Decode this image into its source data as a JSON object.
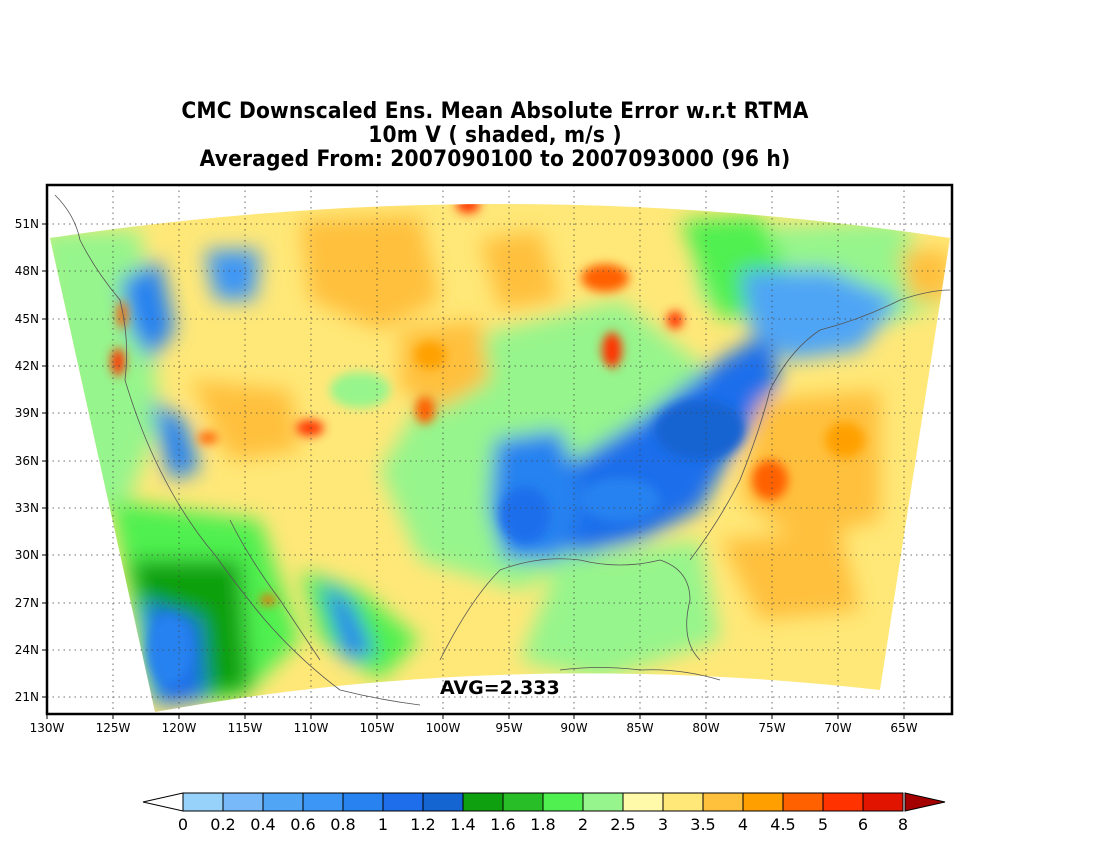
{
  "title": {
    "line1": "CMC Downscaled Ens. Mean Absolute Error w.r.t RTMA",
    "line2": "10m V ( shaded, m/s )",
    "line3": "Averaged From: 2007090100 to 2007093000 (96 h)"
  },
  "map": {
    "lat_labels": [
      "51N",
      "48N",
      "45N",
      "42N",
      "39N",
      "36N",
      "33N",
      "30N",
      "27N",
      "24N",
      "21N"
    ],
    "lon_labels": [
      "130W",
      "125W",
      "120W",
      "115W",
      "110W",
      "105W",
      "100W",
      "95W",
      "90W",
      "85W",
      "80W",
      "75W",
      "70W",
      "65W"
    ],
    "avg_label": "AVG=2.333"
  },
  "colorbar": {
    "labels": [
      "0",
      "0.2",
      "0.4",
      "0.6",
      "0.8",
      "1",
      "1.2",
      "1.4",
      "1.6",
      "1.8",
      "2",
      "2.5",
      "3",
      "3.5",
      "4",
      "4.5",
      "5",
      "6",
      "8"
    ],
    "colors": [
      "#96d2fa",
      "#78b9fa",
      "#50a5f5",
      "#3c96f5",
      "#2882f0",
      "#1e6eeb",
      "#1464d2",
      "#0fa00f",
      "#28be28",
      "#50f050",
      "#96f58c",
      "#fffaaa",
      "#ffe878",
      "#ffc03c",
      "#ffa000",
      "#ff6000",
      "#ff3200",
      "#e11400",
      "#a50000"
    ],
    "low_color": "#ffffff",
    "high_color": "#a50000"
  },
  "colors": {
    "land_outline": "#555555",
    "background": "#ffffff"
  }
}
